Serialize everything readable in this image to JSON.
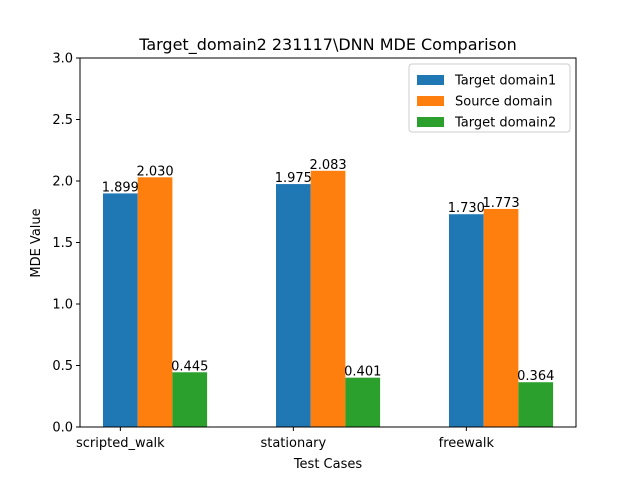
{
  "chart_data": {
    "type": "bar",
    "title": "Target_domain2 231117\\DNN MDE Comparison",
    "xlabel": "Test Cases",
    "ylabel": "MDE Value",
    "categories": [
      "scripted_walk",
      "stationary",
      "freewalk"
    ],
    "series": [
      {
        "name": "Target domain1",
        "values": [
          1.899,
          1.975,
          1.73
        ],
        "color": "#1f77b4"
      },
      {
        "name": "Source domain",
        "values": [
          2.03,
          2.083,
          1.773
        ],
        "color": "#ff7f0e"
      },
      {
        "name": "Target domain2",
        "values": [
          0.445,
          0.401,
          0.364
        ],
        "color": "#2ca02c"
      }
    ],
    "value_labels": [
      [
        "1.899",
        "1.975",
        "1.730"
      ],
      [
        "2.030",
        "2.083",
        "1.773"
      ],
      [
        "0.445",
        "0.401",
        "0.364"
      ]
    ],
    "ylim": [
      0,
      3.0
    ],
    "yticks": [
      0.0,
      0.5,
      1.0,
      1.5,
      2.0,
      2.5,
      3.0
    ],
    "ytick_labels": [
      "0.0",
      "0.5",
      "1.0",
      "1.5",
      "2.0",
      "2.5",
      "3.0"
    ],
    "grid": false,
    "legend_position": "top-right"
  }
}
